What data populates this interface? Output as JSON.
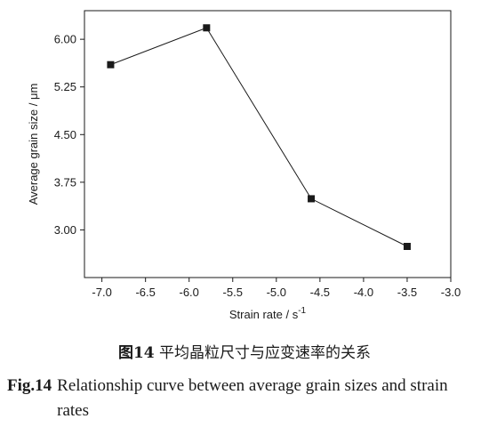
{
  "chart_data": {
    "type": "line",
    "x": [
      -6.9,
      -5.8,
      -4.6,
      -3.5
    ],
    "series": [
      {
        "values": [
          5.6,
          6.18,
          3.49,
          2.74
        ]
      }
    ],
    "xlabel": "Strain rate / s",
    "xlabel_sup": "-1",
    "ylabel": "Average grain size / μm",
    "xlim": [
      -7.2,
      -3.0
    ],
    "ylim": [
      2.25,
      6.45
    ],
    "xticks": [
      -7.0,
      -6.5,
      -6.0,
      -5.5,
      -5.0,
      -4.5,
      -4.0,
      -3.5,
      -3.0
    ],
    "xtick_labels": [
      "-7.0",
      "-6.5",
      "-6.0",
      "-5.5",
      "-5.0",
      "-4.5",
      "-4.0",
      "-3.5",
      "-3.0"
    ],
    "yticks": [
      3.0,
      3.75,
      4.5,
      5.25,
      6.0
    ],
    "ytick_labels": [
      "3.00",
      "3.75",
      "4.50",
      "5.25",
      "6.00"
    ],
    "grid": false,
    "marker": "square",
    "line_color": "#1a1a1a"
  },
  "caption": {
    "cn_number": "图14",
    "cn_text": "平均晶粒尺寸与应变速率的关系",
    "en_label": "Fig.14",
    "en_text": "Relationship curve between average grain sizes and strain rates"
  }
}
